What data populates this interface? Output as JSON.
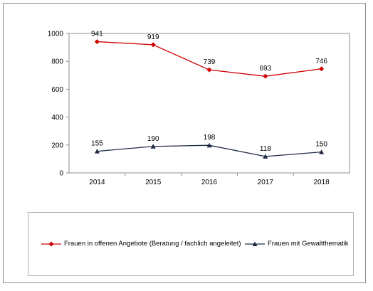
{
  "chart_data": {
    "type": "line",
    "categories": [
      "2014",
      "2015",
      "2016",
      "2017",
      "2018"
    ],
    "series": [
      {
        "name": "Frauen in offenen Angebote (Beratung / fachlich angeleitet)",
        "values": [
          941,
          919,
          739,
          693,
          746
        ],
        "color": "#d00000",
        "marker": "diamond"
      },
      {
        "name": "Frauen mit Gewaltthematik",
        "values": [
          155,
          190,
          198,
          118,
          150
        ],
        "color": "#1f2a44",
        "marker": "triangle"
      }
    ],
    "ylim": [
      0,
      1000
    ],
    "yticks": [
      "0",
      "200",
      "400",
      "600",
      "800",
      "1000"
    ],
    "grid": false,
    "legend_position": "bottom",
    "title": "",
    "xlabel": "",
    "ylabel": ""
  }
}
